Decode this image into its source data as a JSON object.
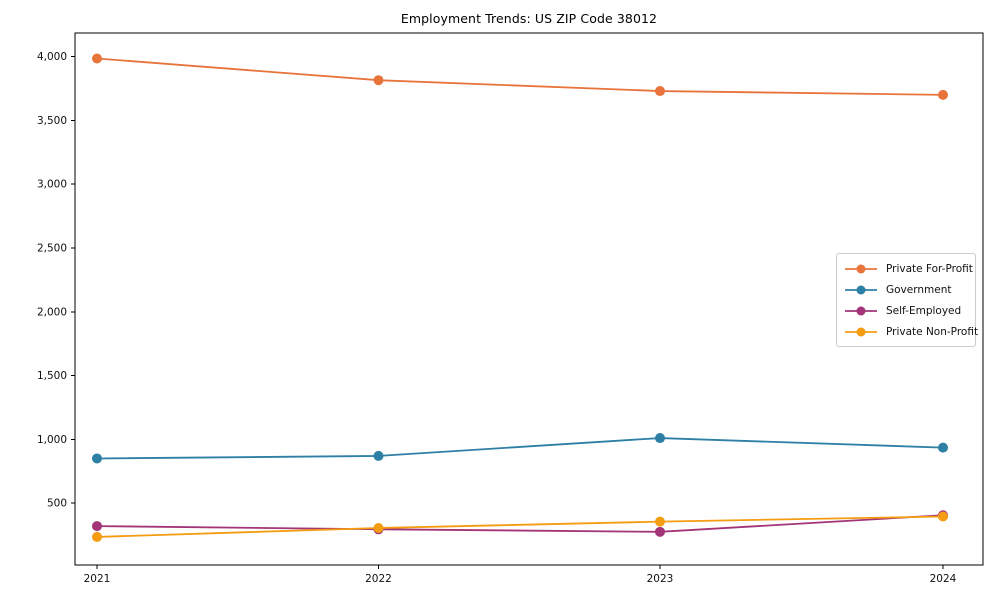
{
  "chart_data": {
    "type": "line",
    "title": "Employment Trends: US ZIP Code 38012",
    "categories": [
      "2021",
      "2022",
      "2023",
      "2024"
    ],
    "x_tick_labels": [
      "2021",
      "2022",
      "2023",
      "2024"
    ],
    "y_ticks": [
      500,
      1000,
      1500,
      2000,
      2500,
      3000,
      3500,
      4000
    ],
    "y_tick_labels": [
      "500",
      "1,000",
      "1,500",
      "2,000",
      "2,500",
      "3,000",
      "3,500",
      "4,000"
    ],
    "ylim": [
      15,
      4185
    ],
    "grid": "off",
    "legend_position": "right",
    "series": [
      {
        "name": "Private For-Profit",
        "color": "#e8743c",
        "values": [
          3985,
          3815,
          3730,
          3700
        ]
      },
      {
        "name": "Government",
        "color": "#2e7fa6",
        "values": [
          850,
          870,
          1010,
          935
        ]
      },
      {
        "name": "Self-Employed",
        "color": "#a23477",
        "values": [
          320,
          295,
          275,
          405
        ]
      },
      {
        "name": "Private Non-Profit",
        "color": "#f49c12",
        "values": [
          235,
          305,
          355,
          395
        ]
      }
    ]
  }
}
